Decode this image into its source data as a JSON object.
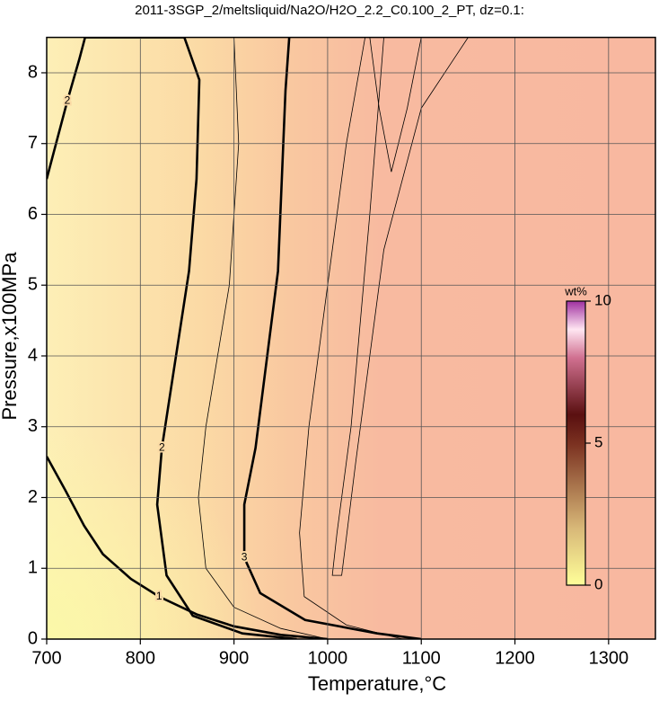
{
  "chart_data": {
    "type": "contour",
    "title": "2011-3SGP_2/meltsliquid/Na2O/H2O_2.2_C0.100_2_PT, dz=0.1:",
    "xlabel": "Temperature,°C",
    "ylabel": "Pressure,x100MPa",
    "xlim": [
      700,
      1350
    ],
    "ylim": [
      0,
      8.5
    ],
    "xticks": [
      700,
      800,
      900,
      1000,
      1100,
      1200,
      1300
    ],
    "yticks": [
      0,
      1,
      2,
      3,
      4,
      5,
      6,
      7,
      8
    ],
    "grid": true,
    "contours": [
      {
        "level": 1,
        "T": [
          700,
          720,
          740,
          760,
          790,
          820,
          860,
          900,
          950,
          1000
        ],
        "P": [
          2.58,
          2.1,
          1.6,
          1.2,
          0.85,
          0.6,
          0.35,
          0.18,
          0.06,
          0
        ]
      },
      {
        "level": 2,
        "T": [
          741,
          847,
          863,
          860,
          852,
          823,
          818,
          828,
          856,
          909,
          967
        ],
        "P": [
          8.5,
          8.5,
          7.9,
          6.5,
          5.2,
          2.7,
          1.9,
          0.9,
          0.33,
          0.08,
          0
        ]
      },
      {
        "level": 2,
        "T": [
          700,
          710,
          722,
          735,
          741
        ],
        "P": [
          6.5,
          7.0,
          7.6,
          8.2,
          8.5
        ]
      },
      {
        "level": 3,
        "T": [
          959,
          955,
          947,
          923,
          911,
          911,
          928,
          976,
          1053,
          1100
        ],
        "P": [
          8.5,
          7.75,
          5.2,
          2.7,
          1.9,
          1.15,
          0.65,
          0.27,
          0.08,
          0
        ]
      },
      {
        "T": [
          900,
          905,
          895,
          870,
          862,
          870,
          900,
          950,
          1000
        ],
        "P": [
          8.5,
          7,
          5,
          3,
          2,
          1,
          0.45,
          0.15,
          0
        ]
      },
      {
        "T": [
          1040,
          1020,
          1000,
          980,
          970,
          975,
          1020,
          1080
        ],
        "P": [
          8.5,
          7,
          5,
          3,
          1.5,
          0.6,
          0.2,
          0
        ]
      },
      {
        "T": [
          1060,
          1045,
          1025,
          1010,
          1005,
          1015,
          1030,
          1060,
          1100,
          1150
        ],
        "P": [
          8.5,
          6,
          3,
          1.5,
          0.9,
          0.9,
          2.5,
          5.5,
          7.5,
          8.5
        ]
      },
      {
        "T": [
          1045,
          1055,
          1068,
          1085,
          1100
        ],
        "P": [
          8.5,
          7.5,
          6.6,
          7.5,
          8.5
        ]
      }
    ],
    "colorbar": {
      "label": "wt%",
      "lim": [
        0,
        10
      ],
      "ticks": [
        0,
        5,
        10
      ]
    }
  }
}
